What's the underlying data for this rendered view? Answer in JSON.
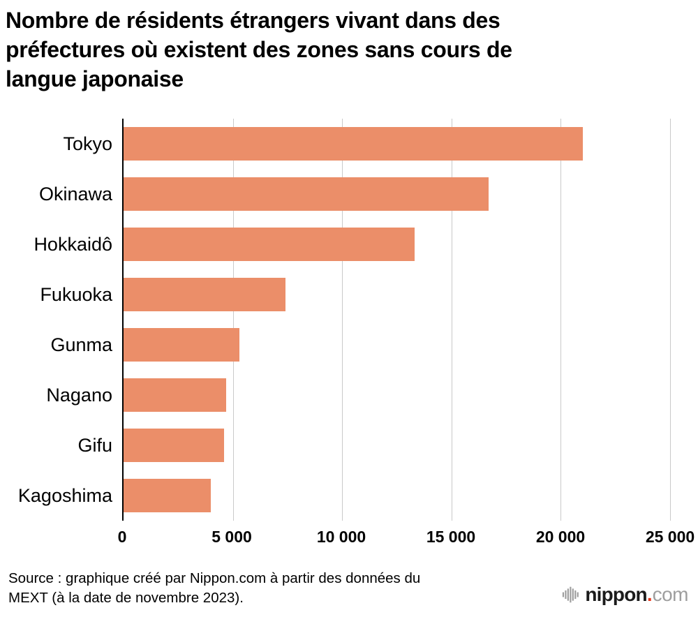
{
  "title": {
    "lines": [
      "Nombre de résidents étrangers vivant dans des",
      "préfectures où existent des zones sans cours de",
      "langue japonaise"
    ]
  },
  "chart_data": {
    "type": "bar",
    "orientation": "horizontal",
    "title": "Nombre de résidents étrangers vivant dans des préfectures où existent des zones sans cours de langue japonaise",
    "categories": [
      "Tokyo",
      "Okinawa",
      "Hokkaidô",
      "Fukuoka",
      "Gunma",
      "Nagano",
      "Gifu",
      "Kagoshima"
    ],
    "values": [
      21000,
      16700,
      13300,
      7400,
      5300,
      4700,
      4600,
      4000
    ],
    "xlabel": "",
    "ylabel": "",
    "xlim": [
      0,
      25000
    ],
    "xticks": [
      0,
      5000,
      10000,
      15000,
      20000,
      25000
    ],
    "xtick_labels": [
      "0",
      "5 000",
      "10 000",
      "15 000",
      "20 000",
      "25 000"
    ],
    "grid": true,
    "legend": false,
    "bar_color": "#EB8E69",
    "gridline_color": "#c9c9c9",
    "axis_color": "#000000"
  },
  "source": {
    "line1": "Source : graphique créé par Nippon.com à partir des données du",
    "line2": "MEXT (à la date de novembre 2023)."
  },
  "logo": {
    "brand": "nippon",
    "dot": ".",
    "tld": "com",
    "dot_color": "#e8391d",
    "gray_color": "#9e9e9e"
  }
}
